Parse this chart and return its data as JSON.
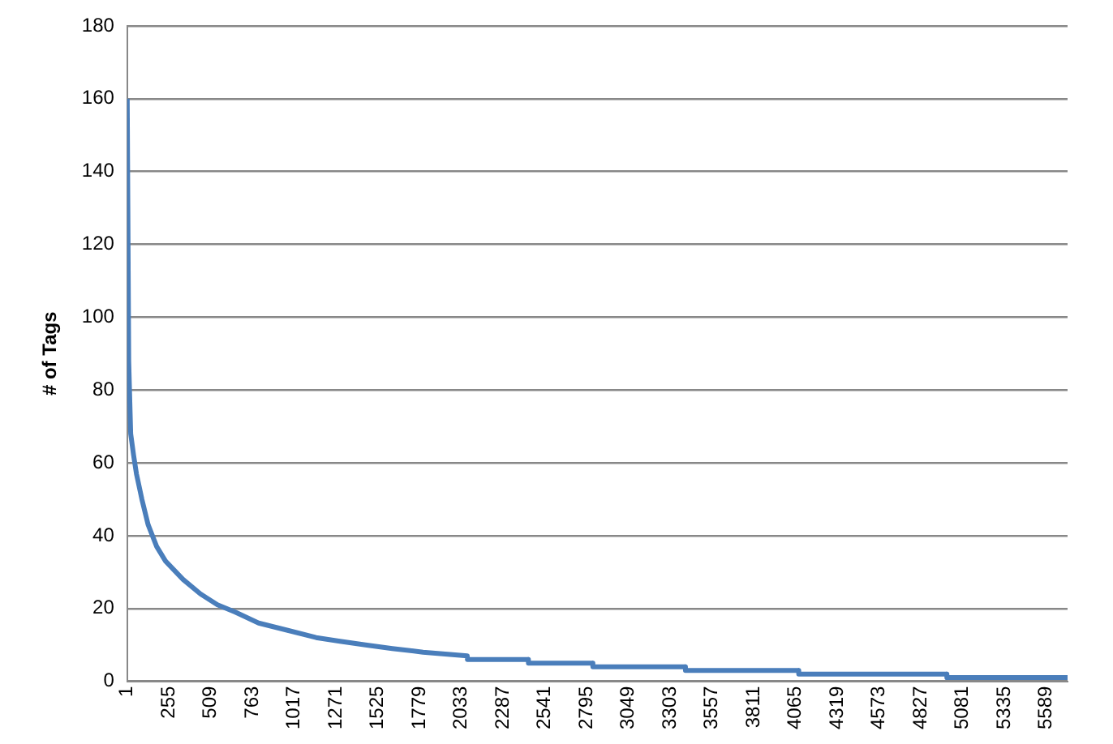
{
  "chart_data": {
    "type": "line",
    "ylabel": "# of Tags",
    "x": [
      1,
      10,
      22,
      40,
      57,
      90,
      128,
      180,
      234,
      340,
      446,
      550,
      658,
      800,
      977,
      1150,
      1295,
      1450,
      1613,
      1800,
      2069,
      2070,
      2440,
      2441,
      2832,
      2833,
      3395,
      3396,
      4084,
      4085,
      4985,
      4986,
      5720
    ],
    "series": [
      {
        "color": "#4a7ebb",
        "values": [
          160,
          88,
          68,
          62,
          57,
          50,
          43,
          37,
          33,
          28,
          24,
          21,
          19,
          16,
          14,
          12,
          11,
          10,
          9,
          8,
          7,
          6,
          6,
          5,
          5,
          4,
          4,
          3,
          3,
          2,
          2,
          1,
          1
        ]
      }
    ],
    "xlim": [
      1,
      5720
    ],
    "xticks": [
      1,
      255,
      509,
      763,
      1017,
      1271,
      1525,
      1779,
      2033,
      2287,
      2541,
      2795,
      3049,
      3303,
      3557,
      3811,
      4065,
      4319,
      4573,
      4827,
      5081,
      5335,
      5589
    ],
    "ylim": [
      0,
      180
    ],
    "yticks": [
      0,
      20,
      40,
      60,
      80,
      100,
      120,
      140,
      160,
      180
    ],
    "grid": "y",
    "legend": false,
    "marker": "none",
    "line_style": "solid"
  }
}
